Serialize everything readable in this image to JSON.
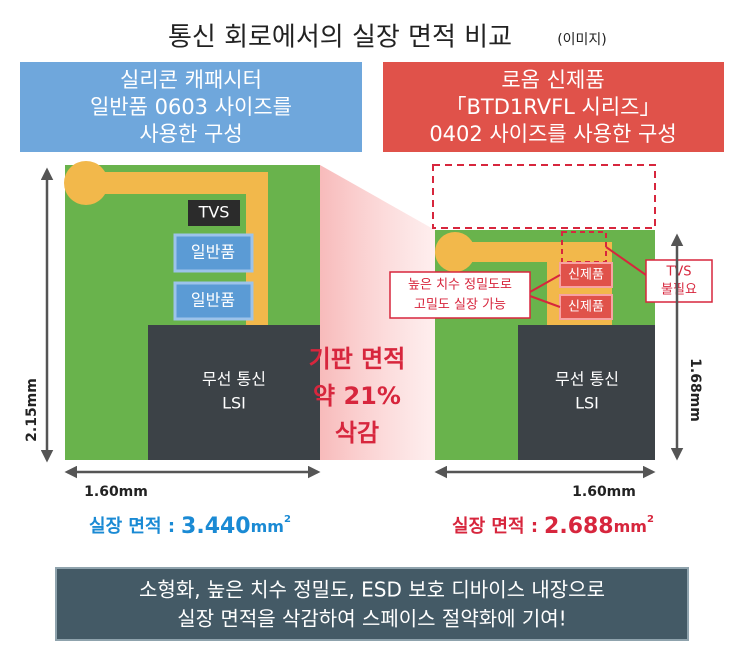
{
  "header": {
    "title": "통신 회로에서의 실장 면적 비교",
    "subtitle": "(이미지)"
  },
  "left": {
    "heading": [
      "실리콘 캐패시터",
      "일반품 0603 사이즈를",
      "사용한 구성"
    ],
    "tvs": "TVS",
    "parts": [
      "일반품",
      "일반품"
    ],
    "lsi": [
      "무선 통신",
      "LSI"
    ],
    "height": "2.15mm",
    "width": "1.60mm",
    "area_label": "실장 면적 :",
    "area_value": "3.440",
    "area_unit": "mm",
    "area_power": "2"
  },
  "center": {
    "lines": [
      "기판 면적",
      "약 21%",
      "삭감"
    ]
  },
  "right": {
    "heading": [
      "로옴 신제품",
      "「BTD1RVFL 시리즈」",
      "0402 사이즈를 사용한 구성"
    ],
    "parts": [
      "신제품",
      "신제품"
    ],
    "callout": [
      "높은 치수 정밀도로",
      "고밀도 실장 가능"
    ],
    "tvs_note": [
      "TVS",
      "불필요"
    ],
    "lsi": [
      "무선 통신",
      "LSI"
    ],
    "height": "1.68mm",
    "width": "1.60mm",
    "area_label": "실장 면적 :",
    "area_value": "2.688",
    "area_unit": "mm",
    "area_power": "2"
  },
  "footer": {
    "lines": [
      "소형화, 높은 치수 정밀도, ESD 보호 디바이스 내장으로",
      "실장 면적을 삭감하여 스페이스 절약화에 기여!"
    ]
  }
}
